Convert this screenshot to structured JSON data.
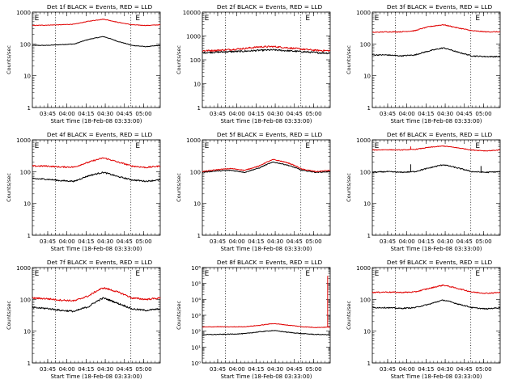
{
  "chart_data": [
    {
      "type": "line",
      "title": "Det 1f BLACK = Events, RED = LLD",
      "xlabel": "Start Time (18-Feb-08 03:33:00)",
      "ylabel": "Counts/sec",
      "yscale": "log",
      "ylim": [
        1,
        1000
      ],
      "ytick_labels": [
        "1",
        "10",
        "100",
        "1000"
      ],
      "xlim": [
        0,
        100
      ],
      "xtick_labels": [
        "03:45",
        "04:00",
        "04:15",
        "04:30",
        "04:45",
        "05:00"
      ],
      "x_axis_unit": "minutes after 03:33",
      "xtick_positions": [
        12,
        27,
        42,
        57,
        72,
        87
      ],
      "vlines_x": [
        18,
        77
      ],
      "E_marker_x": [
        1,
        80
      ],
      "series": [
        {
          "color": "#000000",
          "values": [
            90,
            90,
            95,
            100,
            140,
            170,
            120,
            90,
            82,
            90
          ],
          "noise": 0.02
        },
        {
          "color": "#e00000",
          "values": [
            380,
            390,
            400,
            420,
            520,
            600,
            480,
            400,
            380,
            400
          ],
          "noise": 0.02
        }
      ],
      "spikes": []
    },
    {
      "type": "line",
      "title": "Det 2f BLACK = Events, RED = LLD",
      "xlabel": "Start Time (18-Feb-08 03:33:00)",
      "ylabel": "Counts/sec",
      "yscale": "log",
      "ylim": [
        1,
        10000
      ],
      "ytick_labels": [
        "1",
        "10",
        "100",
        "1000",
        "10000"
      ],
      "xlim": [
        0,
        100
      ],
      "xtick_labels": [
        "03:45",
        "04:00",
        "04:15",
        "04:30",
        "04:45",
        "05:00"
      ],
      "x_axis_unit": "minutes after 03:33",
      "xtick_positions": [
        12,
        27,
        42,
        57,
        72,
        87
      ],
      "vlines_x": [
        18,
        77
      ],
      "E_marker_x": [
        1,
        80
      ],
      "series": [
        {
          "color": "#000000",
          "values": [
            200,
            210,
            220,
            230,
            250,
            260,
            240,
            220,
            200,
            190
          ],
          "noise": 0.08
        },
        {
          "color": "#e00000",
          "values": [
            240,
            250,
            270,
            300,
            350,
            360,
            320,
            280,
            250,
            240
          ],
          "noise": 0.08
        }
      ],
      "spikes": []
    },
    {
      "type": "line",
      "title": "Det 3f BLACK = Events, RED = LLD",
      "xlabel": "Start Time (18-Feb-08 03:33:00)",
      "ylabel": "Counts/sec",
      "yscale": "log",
      "ylim": [
        1,
        1000
      ],
      "ytick_labels": [
        "1",
        "10",
        "100",
        "1000"
      ],
      "xlim": [
        0,
        100
      ],
      "xtick_labels": [
        "03:45",
        "04:00",
        "04:15",
        "04:30",
        "04:45",
        "05:00"
      ],
      "x_axis_unit": "minutes after 03:33",
      "xtick_positions": [
        12,
        27,
        42,
        57,
        72,
        87
      ],
      "vlines_x": [
        18,
        77
      ],
      "E_marker_x": [
        1,
        80
      ],
      "series": [
        {
          "color": "#000000",
          "values": [
            45,
            45,
            42,
            45,
            60,
            75,
            55,
            42,
            40,
            40
          ],
          "noise": 0.04
        },
        {
          "color": "#e00000",
          "values": [
            230,
            240,
            240,
            260,
            350,
            400,
            320,
            260,
            240,
            240
          ],
          "noise": 0.03
        }
      ],
      "spikes": []
    },
    {
      "type": "line",
      "title": "Det 4f BLACK = Events, RED = LLD",
      "xlabel": "Start Time (18-Feb-08 03:33:00)",
      "ylabel": "Counts/sec",
      "yscale": "log",
      "ylim": [
        1,
        1000
      ],
      "ytick_labels": [
        "1",
        "10",
        "100",
        "1000"
      ],
      "xlim": [
        0,
        100
      ],
      "xtick_labels": [
        "03:45",
        "04:00",
        "04:15",
        "04:30",
        "04:45",
        "05:00"
      ],
      "x_axis_unit": "minutes after 03:33",
      "xtick_positions": [
        12,
        27,
        42,
        57,
        72,
        87
      ],
      "vlines_x": [
        18,
        77
      ],
      "E_marker_x": [
        1,
        80
      ],
      "series": [
        {
          "color": "#000000",
          "values": [
            60,
            58,
            52,
            50,
            75,
            95,
            70,
            55,
            50,
            55
          ],
          "noise": 0.05
        },
        {
          "color": "#e00000",
          "values": [
            150,
            150,
            140,
            140,
            200,
            270,
            200,
            150,
            135,
            150
          ],
          "noise": 0.05
        }
      ],
      "spikes": []
    },
    {
      "type": "line",
      "title": "Det 5f BLACK = Events, RED = LLD",
      "xlabel": "Start Time (18-Feb-08 03:33:00)",
      "ylabel": "Counts/sec",
      "yscale": "log",
      "ylim": [
        1,
        1000
      ],
      "ytick_labels": [
        "1",
        "10",
        "100",
        "1000"
      ],
      "xlim": [
        0,
        100
      ],
      "xtick_labels": [
        "03:45",
        "04:00",
        "04:15",
        "04:30",
        "04:45",
        "05:00"
      ],
      "x_axis_unit": "minutes after 03:33",
      "xtick_positions": [
        12,
        27,
        42,
        57,
        72,
        87
      ],
      "vlines_x": [
        18,
        77
      ],
      "E_marker_x": [
        1,
        80
      ],
      "series": [
        {
          "color": "#000000",
          "values": [
            95,
            105,
            110,
            95,
            130,
            200,
            160,
            110,
            95,
            100
          ],
          "noise": 0.03
        },
        {
          "color": "#e00000",
          "values": [
            100,
            115,
            125,
            110,
            150,
            240,
            190,
            120,
            100,
            110
          ],
          "noise": 0.03
        }
      ],
      "spikes": []
    },
    {
      "type": "line",
      "title": "Det 6f BLACK = Events, RED = LLD",
      "xlabel": "Start Time (18-Feb-08 03:33:00)",
      "ylabel": "Counts/sec",
      "yscale": "log",
      "ylim": [
        1,
        1000
      ],
      "ytick_labels": [
        "1",
        "10",
        "100",
        "1000"
      ],
      "xlim": [
        0,
        100
      ],
      "xtick_labels": [
        "03:45",
        "04:00",
        "04:15",
        "04:30",
        "04:45",
        "05:00"
      ],
      "x_axis_unit": "minutes after 03:33",
      "xtick_positions": [
        12,
        27,
        42,
        57,
        72,
        87
      ],
      "vlines_x": [
        18,
        77
      ],
      "E_marker_x": [
        1,
        80
      ],
      "series": [
        {
          "color": "#000000",
          "values": [
            95,
            100,
            95,
            100,
            130,
            165,
            130,
            100,
            95,
            100
          ],
          "noise": 0.04
        },
        {
          "color": "#e00000",
          "values": [
            480,
            490,
            480,
            500,
            580,
            640,
            560,
            480,
            450,
            480
          ],
          "noise": 0.025
        }
      ],
      "spikes": [
        {
          "x": 30,
          "series": 0,
          "value": 170
        },
        {
          "x": 85,
          "series": 0,
          "value": 150
        },
        {
          "x": 30,
          "series": 1,
          "value": 620
        }
      ]
    },
    {
      "type": "line",
      "title": "Det 7f BLACK = Events, RED = LLD",
      "xlabel": "Start Time (18-Feb-08 03:33:00)",
      "ylabel": "Counts/sec",
      "yscale": "log",
      "ylim": [
        1,
        1000
      ],
      "ytick_labels": [
        "1",
        "10",
        "100",
        "1000"
      ],
      "xlim": [
        0,
        100
      ],
      "xtick_labels": [
        "03:45",
        "04:00",
        "04:15",
        "04:30",
        "04:45",
        "05:00"
      ],
      "x_axis_unit": "minutes after 03:33",
      "xtick_positions": [
        12,
        27,
        42,
        57,
        72,
        87
      ],
      "vlines_x": [
        18,
        77
      ],
      "E_marker_x": [
        1,
        80
      ],
      "series": [
        {
          "color": "#000000",
          "values": [
            55,
            52,
            45,
            42,
            60,
            110,
            75,
            50,
            45,
            50
          ],
          "noise": 0.06
        },
        {
          "color": "#e00000",
          "values": [
            110,
            105,
            95,
            90,
            130,
            230,
            170,
            110,
            100,
            110
          ],
          "noise": 0.06
        }
      ],
      "spikes": []
    },
    {
      "type": "line",
      "title": "Det 8f BLACK = Events, RED = LLD",
      "xlabel": "Start Time (18-Feb-08 03:33:00)",
      "ylabel": "Counts/sec",
      "yscale": "log",
      "ylim": [
        1,
        1000000
      ],
      "ytick_labels": [
        "10⁰",
        "10¹",
        "10²",
        "10³",
        "10⁴",
        "10⁵",
        "10⁶"
      ],
      "xlim": [
        0,
        100
      ],
      "xtick_labels": [
        "03:45",
        "04:00",
        "04:15",
        "04:30",
        "04:45",
        "05:00"
      ],
      "x_axis_unit": "minutes after 03:33",
      "xtick_positions": [
        12,
        27,
        42,
        57,
        72,
        87
      ],
      "vlines_x": [
        18,
        77
      ],
      "E_marker_x": [
        1,
        80
      ],
      "series": [
        {
          "color": "#000000",
          "values": [
            60,
            62,
            65,
            70,
            90,
            110,
            85,
            70,
            62,
            60
          ],
          "noise": 0.05
        },
        {
          "color": "#e00000",
          "values": [
            180,
            190,
            185,
            190,
            230,
            300,
            240,
            190,
            170,
            180
          ],
          "noise": 0.04
        }
      ],
      "spikes": [
        {
          "x": 98,
          "series": 1,
          "value": 300000
        }
      ]
    },
    {
      "type": "line",
      "title": "Det 9f BLACK = Events, RED = LLD",
      "xlabel": "Start Time (18-Feb-08 03:33:00)",
      "ylabel": "Counts/sec",
      "yscale": "log",
      "ylim": [
        1,
        1000
      ],
      "ytick_labels": [
        "1",
        "10",
        "100",
        "1000"
      ],
      "xlim": [
        0,
        100
      ],
      "xtick_labels": [
        "03:45",
        "04:00",
        "04:15",
        "04:30",
        "04:45",
        "05:00"
      ],
      "x_axis_unit": "minutes after 03:33",
      "xtick_positions": [
        12,
        27,
        42,
        57,
        72,
        87
      ],
      "vlines_x": [
        18,
        77
      ],
      "E_marker_x": [
        1,
        80
      ],
      "series": [
        {
          "color": "#000000",
          "values": [
            55,
            55,
            52,
            55,
            70,
            95,
            72,
            55,
            50,
            55
          ],
          "noise": 0.04
        },
        {
          "color": "#e00000",
          "values": [
            165,
            170,
            165,
            170,
            220,
            280,
            220,
            170,
            155,
            165
          ],
          "noise": 0.04
        }
      ],
      "spikes": []
    }
  ],
  "labels": {
    "e_marker": "E"
  }
}
